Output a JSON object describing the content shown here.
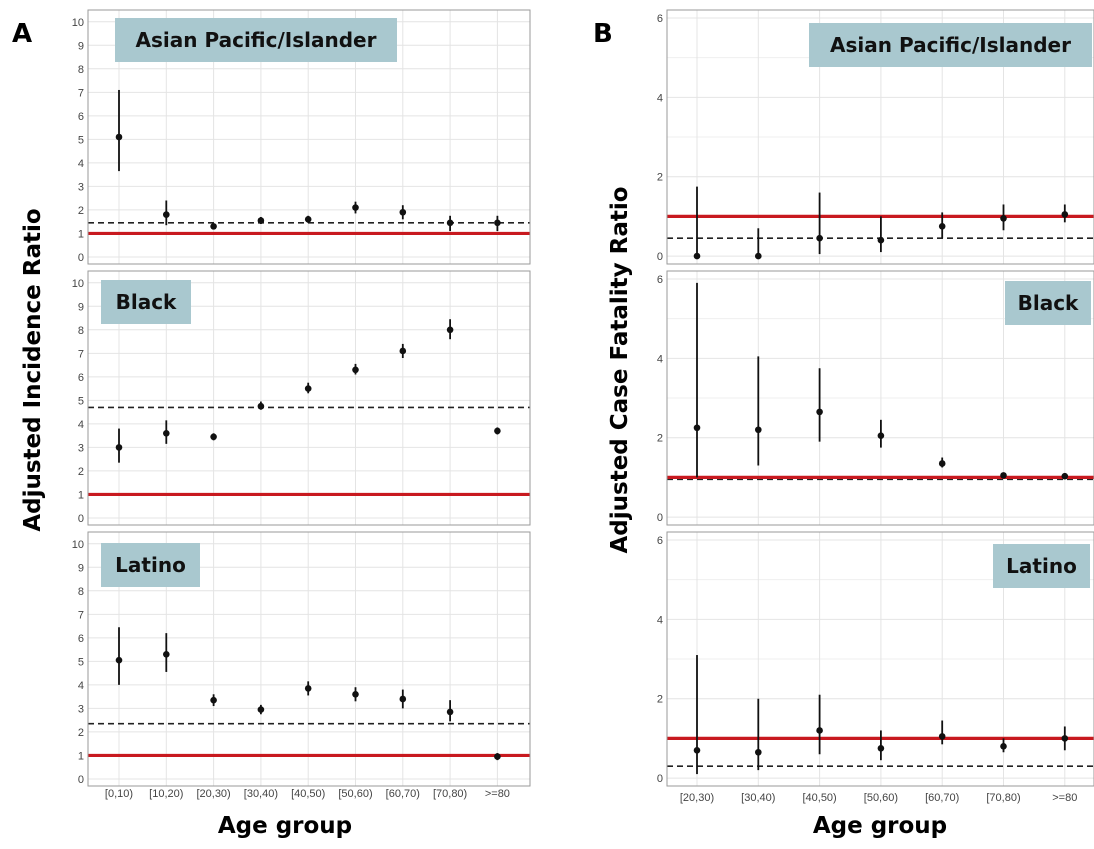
{
  "colors": {
    "reference_line": "#c8191f",
    "strip_fill": "#a9c8cf",
    "grid": "#e4e4e4",
    "point": "#111111"
  },
  "panel_a": {
    "letter": "A",
    "ylabel": "Adjusted Incidence Ratio",
    "xlabel": "Age group"
  },
  "panel_b": {
    "letter": "B",
    "ylabel": "Adjusted Case Fatality Ratio",
    "xlabel": "Age group"
  },
  "chart_data": [
    {
      "type": "scatter",
      "panel": "A",
      "title": "",
      "xlabel": "Age group",
      "ylabel": "Adjusted Incidence Ratio",
      "grid": true,
      "categories": [
        "[0,10)",
        "[10,20)",
        "[20,30)",
        "[30,40)",
        "[40,50)",
        "[50,60)",
        "[60,70)",
        "[70,80)",
        ">=80"
      ],
      "facets": [
        {
          "name": "Asian Pacific/Islander",
          "ylim": [
            -0.3,
            10.5
          ],
          "yticks": [
            0,
            1,
            2,
            3,
            4,
            5,
            6,
            7,
            8,
            9,
            10
          ],
          "reference_line": 1,
          "dashed_line": 1.45,
          "values": [
            5.1,
            1.8,
            1.3,
            1.55,
            1.6,
            2.1,
            1.9,
            1.45,
            1.45
          ],
          "lower": [
            3.65,
            1.35,
            1.2,
            1.4,
            1.45,
            1.85,
            1.6,
            1.1,
            1.1
          ],
          "upper": [
            7.1,
            2.4,
            1.4,
            1.7,
            1.75,
            2.35,
            2.2,
            1.75,
            1.75
          ]
        },
        {
          "name": "Black",
          "ylim": [
            -0.3,
            10.5
          ],
          "yticks": [
            0,
            1,
            2,
            3,
            4,
            5,
            6,
            7,
            8,
            9,
            10
          ],
          "reference_line": 1,
          "dashed_line": 4.7,
          "values": [
            3.0,
            3.6,
            3.45,
            4.75,
            5.5,
            6.3,
            7.1,
            8.0,
            3.7
          ],
          "lower": [
            2.35,
            3.15,
            3.3,
            4.6,
            5.3,
            6.1,
            6.8,
            7.6,
            3.55
          ],
          "upper": [
            3.8,
            4.15,
            3.6,
            4.95,
            5.75,
            6.55,
            7.4,
            8.45,
            3.85
          ]
        },
        {
          "name": "Latino",
          "ylim": [
            -0.3,
            10.5
          ],
          "yticks": [
            0,
            1,
            2,
            3,
            4,
            5,
            6,
            7,
            8,
            9,
            10
          ],
          "reference_line": 1,
          "dashed_line": 2.35,
          "values": [
            5.05,
            5.3,
            3.35,
            2.95,
            3.85,
            3.6,
            3.4,
            2.85,
            0.95
          ],
          "lower": [
            4.0,
            4.55,
            3.1,
            2.75,
            3.55,
            3.3,
            3.0,
            2.45,
            0.8
          ],
          "upper": [
            6.45,
            6.2,
            3.6,
            3.15,
            4.15,
            3.9,
            3.8,
            3.35,
            1.1
          ]
        }
      ]
    },
    {
      "type": "scatter",
      "panel": "B",
      "title": "",
      "xlabel": "Age group",
      "ylabel": "Adjusted Case Fatality Ratio",
      "grid": true,
      "categories": [
        "[20,30)",
        "[30,40)",
        "[40,50)",
        "[50,60)",
        "[60,70)",
        "[70,80)",
        ">=80"
      ],
      "facets": [
        {
          "name": "Asian Pacific/Islander",
          "ylim": [
            -0.2,
            6.2
          ],
          "yticks": [
            0,
            2,
            4,
            6
          ],
          "reference_line": 1,
          "dashed_line": 0.45,
          "values": [
            0.0,
            0.0,
            0.45,
            0.4,
            0.75,
            0.95,
            1.05
          ],
          "lower": [
            0.0,
            0.0,
            0.05,
            0.1,
            0.45,
            0.65,
            0.85
          ],
          "upper": [
            1.75,
            0.7,
            1.6,
            1.0,
            1.1,
            1.3,
            1.3
          ]
        },
        {
          "name": "Black",
          "ylim": [
            -0.2,
            6.2
          ],
          "yticks": [
            0,
            2,
            4,
            6
          ],
          "reference_line": 1,
          "dashed_line": 0.95,
          "values": [
            2.25,
            2.2,
            2.65,
            2.05,
            1.35,
            1.05,
            1.03
          ],
          "lower": [
            1.0,
            1.3,
            1.9,
            1.75,
            1.25,
            1.0,
            0.98
          ],
          "upper": [
            5.9,
            4.05,
            3.75,
            2.45,
            1.5,
            1.1,
            1.08
          ]
        },
        {
          "name": "Latino",
          "ylim": [
            -0.2,
            6.2
          ],
          "yticks": [
            0,
            2,
            4,
            6
          ],
          "reference_line": 1,
          "dashed_line": 0.3,
          "values": [
            0.7,
            0.65,
            1.2,
            0.75,
            1.05,
            0.8,
            1.0
          ],
          "lower": [
            0.1,
            0.2,
            0.6,
            0.45,
            0.85,
            0.65,
            0.7
          ],
          "upper": [
            3.1,
            2.0,
            2.1,
            1.2,
            1.45,
            1.0,
            1.3
          ]
        }
      ]
    }
  ]
}
